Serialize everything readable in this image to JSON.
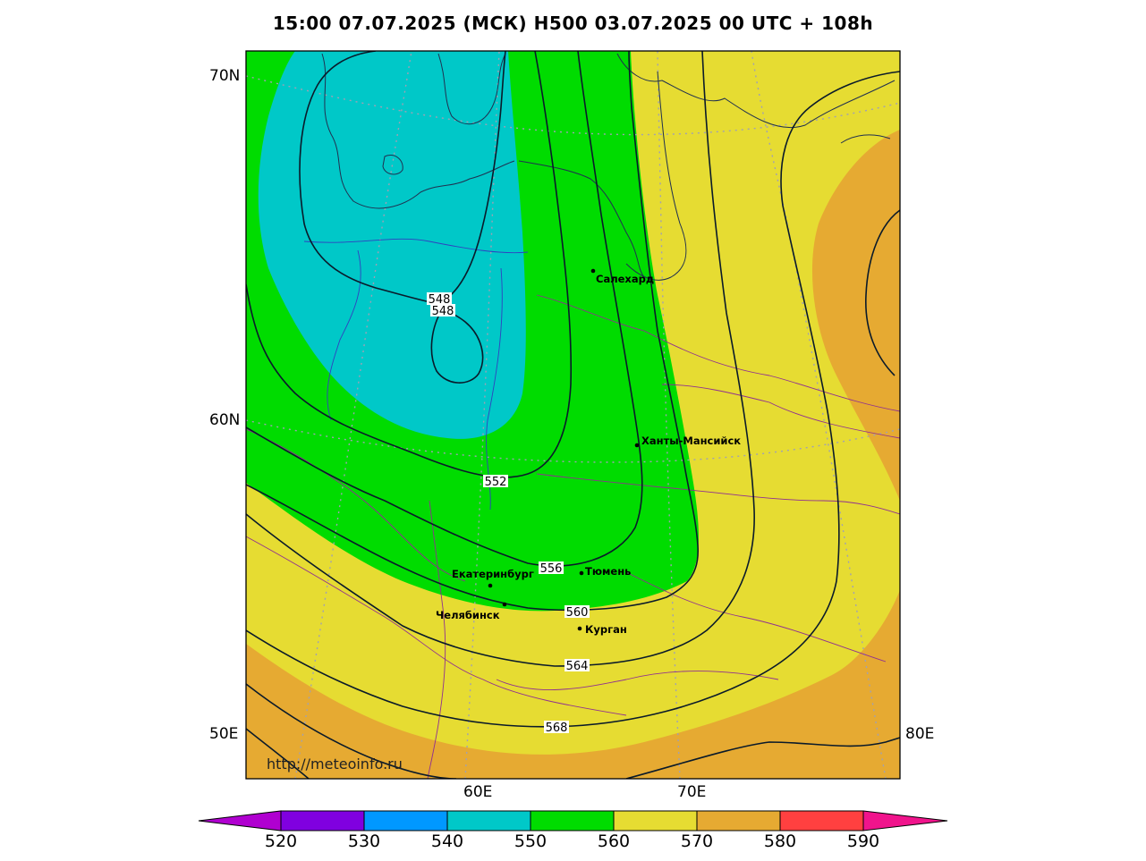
{
  "title": "15:00 07.07.2025 (МСК) H500  03.07.2025 00 UTC + 108h",
  "url": "http://meteoinfo.ru",
  "lat_labels": [
    "70N",
    "60N",
    "50E"
  ],
  "lon_bottom_labels": [
    "60E",
    "70E"
  ],
  "lon_right_label": "80E",
  "contour_labels": [
    "548",
    "548",
    "552",
    "556",
    "560",
    "564",
    "568"
  ],
  "cities": [
    {
      "name": "Салехард"
    },
    {
      "name": "Ханты-Мансийск"
    },
    {
      "name": "Екатеринбург"
    },
    {
      "name": "Тюмень"
    },
    {
      "name": "Челябинск"
    },
    {
      "name": "Курган"
    }
  ],
  "colorbar": {
    "ticks": [
      "520",
      "530",
      "540",
      "550",
      "560",
      "570",
      "580",
      "590"
    ],
    "colors": [
      "#b000d0",
      "#8000e0",
      "#0098ff",
      "#00c8c8",
      "#00dc00",
      "#e6dc32",
      "#e6aa32",
      "#ff4040",
      "#f0148c"
    ]
  }
}
